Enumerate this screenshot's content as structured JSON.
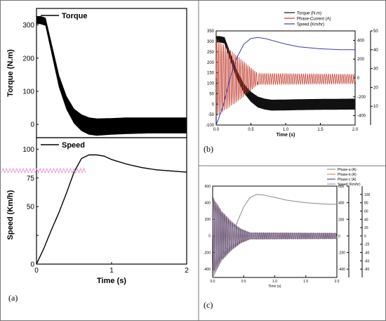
{
  "chart_data": [
    {
      "id": "a-top",
      "type": "line",
      "panel_label": "(a)",
      "xlabel": "",
      "ylabel": "Torque (N.m)",
      "xlim": [
        0,
        2
      ],
      "ylim": [
        -40,
        350
      ],
      "yticks": [
        0,
        100,
        200,
        300
      ],
      "ytick_labels": [
        "0",
        "100",
        "200",
        "300"
      ],
      "legend": [
        "Torque"
      ],
      "legend_position": "top-left",
      "series": [
        {
          "name": "Torque",
          "color": "#000000",
          "x": [
            0,
            0.05,
            0.12,
            0.2,
            0.3,
            0.4,
            0.5,
            0.6,
            0.7,
            0.8,
            1.0,
            1.2,
            1.5,
            1.8,
            2.0
          ],
          "y": [
            315,
            315,
            310,
            230,
            130,
            65,
            25,
            5,
            -5,
            -8,
            -6,
            -4,
            -3,
            -3,
            -3
          ],
          "band": [
            12,
            12,
            12,
            15,
            18,
            20,
            22,
            25,
            26,
            26,
            25,
            25,
            24,
            24,
            24
          ]
        }
      ]
    },
    {
      "id": "a-bottom",
      "type": "line",
      "xlabel": "Time (s)",
      "ylabel": "Speed (Km/h)",
      "xlim": [
        0,
        2
      ],
      "ylim": [
        0,
        110
      ],
      "xticks": [
        0,
        1,
        2
      ],
      "xtick_labels": [
        "0",
        "1",
        "2"
      ],
      "yticks": [
        0,
        25,
        50,
        75,
        100
      ],
      "ytick_labels": [
        "0",
        "",
        "50",
        "75",
        "100"
      ],
      "legend": [
        "Speed"
      ],
      "legend_position": "top-left",
      "series": [
        {
          "name": "Speed",
          "color": "#000000",
          "x": [
            0,
            0.1,
            0.2,
            0.3,
            0.4,
            0.5,
            0.6,
            0.7,
            0.8,
            0.9,
            1.0,
            1.2,
            1.4,
            1.6,
            1.8,
            2.0
          ],
          "y": [
            0,
            14,
            30,
            45,
            62,
            80,
            92,
            95,
            95,
            94,
            91,
            87,
            84,
            82,
            81,
            80
          ]
        }
      ]
    },
    {
      "id": "b",
      "type": "line",
      "panel_label": "(b)",
      "xlabel": "Time (s)",
      "ylabel": "",
      "xlim": [
        0,
        2
      ],
      "ylim": [
        -100,
        350
      ],
      "xticks": [
        0,
        0.5,
        1,
        1.5,
        2
      ],
      "xtick_labels": [
        "0.0",
        "0.5",
        "1.0",
        "1.5",
        "2.0"
      ],
      "yticks": [
        -100,
        -50,
        0,
        50,
        100,
        150,
        200,
        250,
        300,
        350
      ],
      "ytick_labels": [
        "-100",
        "-50",
        "0",
        "50",
        "100",
        "150",
        "200",
        "250",
        "300",
        "350"
      ],
      "right_axis_1": {
        "ylim": [
          -500,
          500
        ],
        "ticks": [
          -400,
          -200,
          0,
          200,
          400
        ],
        "tick_labels": [
          "-400",
          "-200",
          "0",
          "200",
          "400"
        ]
      },
      "right_axis_2": {
        "ylim": [
          0,
          50
        ],
        "ticks": [
          10,
          20,
          30,
          40,
          50
        ],
        "tick_labels": [
          "10",
          "20",
          "30",
          "40",
          "50"
        ]
      },
      "legend": [
        "Torque (N.m)",
        "Phase-Current (A)",
        "Speed (Km/hr)"
      ],
      "legend_position": "top-right",
      "series": [
        {
          "name": "Torque (N.m)",
          "color": "#111111",
          "x": [
            0,
            0.05,
            0.12,
            0.2,
            0.3,
            0.4,
            0.5,
            0.6,
            0.7,
            0.8,
            1.0,
            1.3,
            1.6,
            2.0
          ],
          "y": [
            310,
            310,
            305,
            230,
            140,
            75,
            35,
            10,
            0,
            -5,
            -4,
            -2,
            -1,
            0
          ],
          "band": [
            15,
            15,
            15,
            18,
            20,
            22,
            24,
            26,
            26,
            26,
            26,
            26,
            26,
            26
          ]
        },
        {
          "name": "Phase-Current (A)",
          "color": "#c0392b",
          "amplitude_envelope": [
            [
              0,
              420
            ],
            [
              0.3,
              250
            ],
            [
              0.6,
              60
            ],
            [
              2.0,
              50
            ]
          ],
          "offset": 120
        },
        {
          "name": "Speed (Km/hr)",
          "color": "#3b3bb0",
          "x": [
            0,
            0.1,
            0.2,
            0.3,
            0.4,
            0.5,
            0.6,
            0.7,
            0.8,
            1.0,
            1.2,
            1.5,
            1.8,
            2.0
          ],
          "y": [
            0,
            10,
            25,
            36,
            43,
            46,
            46.5,
            46,
            45,
            43,
            41.5,
            40.5,
            40,
            40
          ]
        }
      ]
    },
    {
      "id": "c",
      "type": "line",
      "panel_label": "(c)",
      "xlabel": "Time (s)",
      "ylabel": "",
      "xlim": [
        0,
        2
      ],
      "ylim": [
        -500,
        600
      ],
      "xticks": [
        0,
        0.5,
        1,
        1.5,
        2
      ],
      "xtick_labels": [
        "0.0",
        "0.5",
        "1.0",
        "1.5",
        "2.0"
      ],
      "yticks": [
        -400,
        -200,
        0,
        200,
        400,
        600
      ],
      "ytick_labels": [
        "-400",
        "-200",
        "0",
        "200",
        "400",
        "600"
      ],
      "right_axis_1": {
        "ylim": [
          -500,
          600
        ],
        "ticks": [
          -400,
          -200,
          0,
          200,
          400,
          600
        ],
        "tick_labels": [
          "-400",
          "-200",
          "0",
          "200",
          "400",
          "600"
        ]
      },
      "right_axis_2": {
        "ylim": [
          -100,
          120
        ],
        "ticks": [
          -80,
          -60,
          -40,
          -20,
          0,
          20,
          40,
          60,
          80,
          100
        ],
        "tick_labels": [
          "-80",
          "-60",
          "-40",
          "-20",
          "0",
          "20",
          "40",
          "60",
          "80",
          "100"
        ]
      },
      "legend": [
        "Phase-a (A)",
        "Phase-b (A)",
        "Phase-c (A)",
        "Speed (Km/hr)"
      ],
      "legend_position": "top-right",
      "series": [
        {
          "name": "Phase-a (A)",
          "color": "#7d7d7d"
        },
        {
          "name": "Phase-b (A)",
          "color": "#c07a4a"
        },
        {
          "name": "Phase-c (A)",
          "color": "#2a2a9a"
        },
        {
          "name": "Speed (Km/hr)",
          "color": "#888888",
          "x": [
            0,
            0.1,
            0.2,
            0.3,
            0.4,
            0.5,
            0.6,
            0.7,
            0.8,
            1.0,
            1.2,
            1.5,
            1.8,
            2.0
          ],
          "y": [
            -100,
            -70,
            -35,
            -5,
            35,
            70,
            92,
            100,
            99,
            93,
            86,
            80,
            77,
            76
          ]
        }
      ],
      "phase_envelope": [
        [
          0,
          480
        ],
        [
          0.15,
          300
        ],
        [
          0.3,
          180
        ],
        [
          0.45,
          90
        ],
        [
          0.6,
          40
        ],
        [
          2.0,
          35
        ]
      ]
    }
  ]
}
